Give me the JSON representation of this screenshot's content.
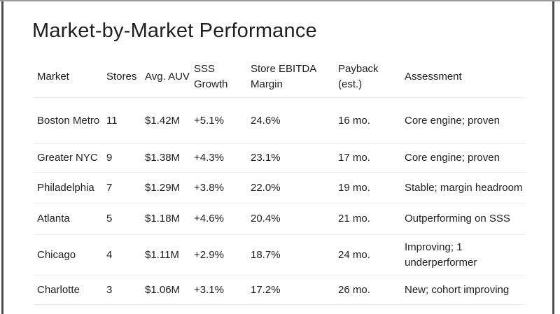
{
  "slide": {
    "title": "Market-by-Market Performance"
  },
  "table": {
    "columns": [
      "Market",
      "Stores",
      "Avg. AUV",
      "SSS Growth",
      "Store EBITDA Margin",
      "Payback (est.)",
      "Assessment"
    ],
    "rows": [
      [
        "Boston Metro",
        "11",
        "$1.42M",
        "+5.1%",
        "24.6%",
        "16 mo.",
        "Core engine; proven"
      ],
      [
        "Greater NYC",
        "9",
        "$1.38M",
        "+4.3%",
        "23.1%",
        "17 mo.",
        "Core engine; proven"
      ],
      [
        "Philadelphia",
        "7",
        "$1.29M",
        "+3.8%",
        "22.0%",
        "19 mo.",
        "Stable; margin headroom"
      ],
      [
        "Atlanta",
        "5",
        "$1.18M",
        "+4.6%",
        "20.4%",
        "21 mo.",
        "Outperforming on SSS"
      ],
      [
        "Chicago",
        "4",
        "$1.11M",
        "+2.9%",
        "18.7%",
        "24 mo.",
        "Improving; 1 underperformer"
      ],
      [
        "Charlotte",
        "3",
        "$1.06M",
        "+3.1%",
        "17.2%",
        "26 mo.",
        "New; cohort improving"
      ]
    ]
  },
  "colors": {
    "text": "#1e1e1e",
    "divider": "#ececec",
    "frame-side": "#4d4d4d",
    "frame-top": "#9a9a9a",
    "bg": "#ffffff"
  }
}
